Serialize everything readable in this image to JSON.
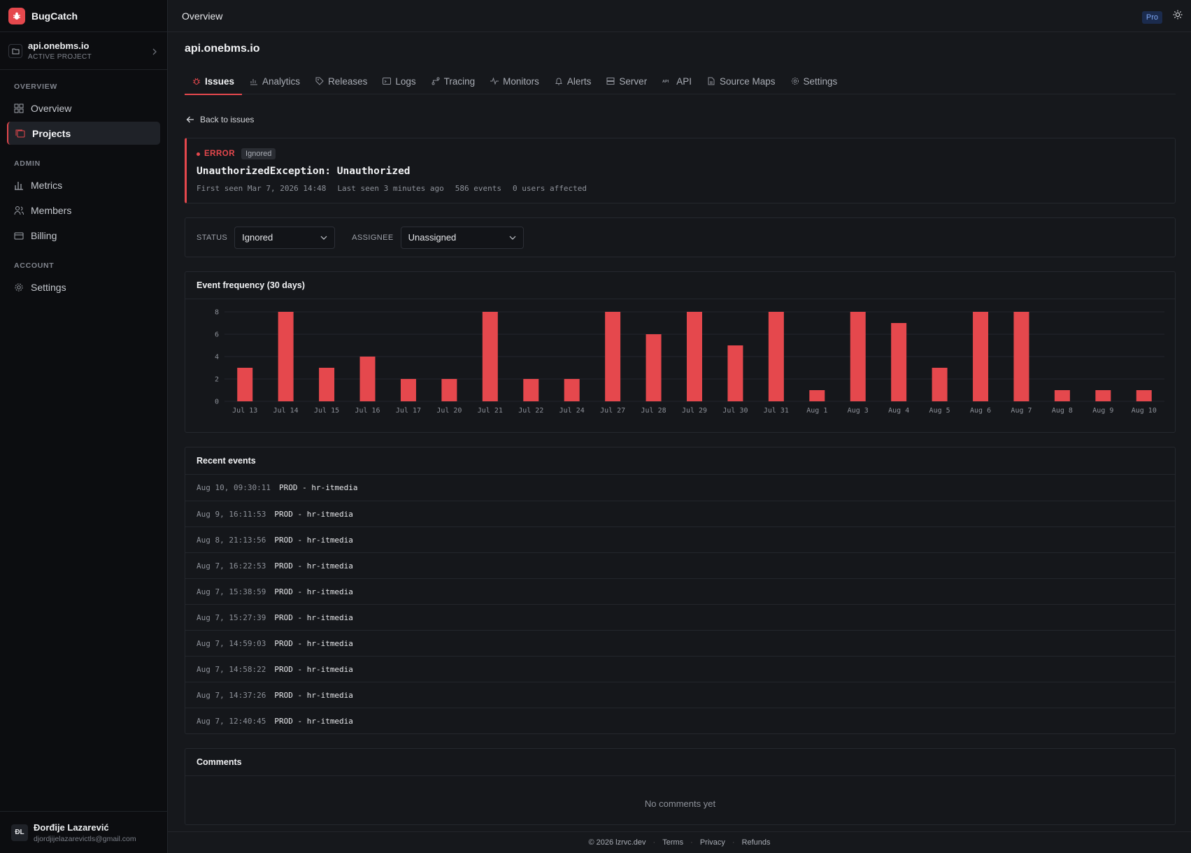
{
  "app": {
    "name": "BugCatch",
    "logo_icon": "bug-icon",
    "accent": "#e5484d"
  },
  "project_switcher": {
    "name": "api.onebms.io",
    "subtitle": "ACTIVE PROJECT"
  },
  "sidebar": {
    "sections": [
      {
        "heading": "OVERVIEW",
        "items": [
          {
            "label": "Overview",
            "icon": "grid-icon"
          },
          {
            "label": "Projects",
            "icon": "projects-icon",
            "active": true
          }
        ]
      },
      {
        "heading": "ADMIN",
        "items": [
          {
            "label": "Metrics",
            "icon": "bar-chart-icon"
          },
          {
            "label": "Members",
            "icon": "users-icon"
          },
          {
            "label": "Billing",
            "icon": "card-icon"
          }
        ]
      },
      {
        "heading": "ACCOUNT",
        "items": [
          {
            "label": "Settings",
            "icon": "gear-icon"
          }
        ]
      }
    ]
  },
  "user": {
    "initials": "ĐL",
    "name": "Đorđije Lazarević",
    "email": "djordjijelazarevictls@gmail.com"
  },
  "topbar": {
    "title": "Overview",
    "plan_badge": "Pro"
  },
  "main": {
    "project_title": "api.onebms.io",
    "tabs": [
      {
        "label": "Issues",
        "icon": "bug-icon",
        "active": true
      },
      {
        "label": "Analytics",
        "icon": "analytics-icon"
      },
      {
        "label": "Releases",
        "icon": "tag-icon"
      },
      {
        "label": "Logs",
        "icon": "terminal-icon"
      },
      {
        "label": "Tracing",
        "icon": "tracing-icon"
      },
      {
        "label": "Monitors",
        "icon": "pulse-icon"
      },
      {
        "label": "Alerts",
        "icon": "bell-icon"
      },
      {
        "label": "Server",
        "icon": "server-icon"
      },
      {
        "label": "API",
        "icon": "api-icon"
      },
      {
        "label": "Source Maps",
        "icon": "file-icon"
      },
      {
        "label": "Settings",
        "icon": "gear-icon"
      }
    ],
    "back_label": "Back to issues"
  },
  "issue": {
    "level": "ERROR",
    "status_badge": "Ignored",
    "title": "UnauthorizedException: Unauthorized",
    "first_seen": "First seen Mar 7, 2026 14:48",
    "last_seen": "Last seen 3 minutes ago",
    "events": "586 events",
    "users": "0 users affected"
  },
  "controls": {
    "status_label": "STATUS",
    "status_value": "Ignored",
    "assignee_label": "ASSIGNEE",
    "assignee_value": "Unassigned"
  },
  "chart_title": "Event frequency (30 days)",
  "chart_data": {
    "type": "bar",
    "categories": [
      "Jul 13",
      "Jul 14",
      "Jul 15",
      "Jul 16",
      "Jul 17",
      "Jul 20",
      "Jul 21",
      "Jul 22",
      "Jul 24",
      "Jul 27",
      "Jul 28",
      "Jul 29",
      "Jul 30",
      "Jul 31",
      "Aug 1",
      "Aug 3",
      "Aug 4",
      "Aug 5",
      "Aug 6",
      "Aug 7",
      "Aug 8",
      "Aug 9",
      "Aug 10"
    ],
    "values": [
      3,
      8,
      3,
      4,
      2,
      2,
      8,
      2,
      2,
      8,
      6,
      8,
      5,
      8,
      1,
      8,
      7,
      3,
      8,
      8,
      1,
      1,
      1
    ],
    "yticks": [
      0,
      2,
      4,
      6,
      8
    ],
    "ylim": [
      0,
      8
    ],
    "color": "#e5484d",
    "grid": true
  },
  "recent_events": {
    "title": "Recent events",
    "rows": [
      {
        "time": "Aug 10, 09:30:11",
        "env": "PROD - hr-itmedia"
      },
      {
        "time": "Aug 9, 16:11:53",
        "env": "PROD - hr-itmedia"
      },
      {
        "time": "Aug 8, 21:13:56",
        "env": "PROD - hr-itmedia"
      },
      {
        "time": "Aug 7, 16:22:53",
        "env": "PROD - hr-itmedia"
      },
      {
        "time": "Aug 7, 15:38:59",
        "env": "PROD - hr-itmedia"
      },
      {
        "time": "Aug 7, 15:27:39",
        "env": "PROD - hr-itmedia"
      },
      {
        "time": "Aug 7, 14:59:03",
        "env": "PROD - hr-itmedia"
      },
      {
        "time": "Aug 7, 14:58:22",
        "env": "PROD - hr-itmedia"
      },
      {
        "time": "Aug 7, 14:37:26",
        "env": "PROD - hr-itmedia"
      },
      {
        "time": "Aug 7, 12:40:45",
        "env": "PROD - hr-itmedia"
      }
    ]
  },
  "comments": {
    "title": "Comments",
    "empty": "No comments yet"
  },
  "footer": {
    "copyright": "© 2026 lzrvc.dev",
    "links": [
      "Terms",
      "Privacy",
      "Refunds"
    ]
  }
}
